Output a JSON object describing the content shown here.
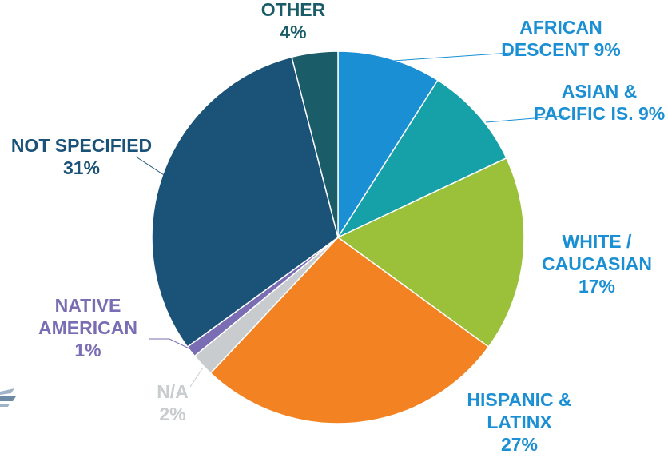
{
  "chart_data": {
    "type": "pie",
    "title": "",
    "slices": [
      {
        "name": "AFRICAN DESCENT",
        "line1": "AFRICAN",
        "line2": "DESCENT 9%",
        "line3": "",
        "value": 9,
        "color": "#1a8fd3",
        "label_color": "#1a8fd3"
      },
      {
        "name": "ASIAN & PACIFIC IS.",
        "line1": "ASIAN &",
        "line2": "PACIFIC IS. 9%",
        "line3": "",
        "value": 9,
        "color": "#16a0a8",
        "label_color": "#1a8fd3"
      },
      {
        "name": "WHITE / CAUCASIAN",
        "line1": "WHITE /",
        "line2": "CAUCASIAN",
        "line3": "17%",
        "value": 17,
        "color": "#9bc13a",
        "label_color": "#1a8fd3"
      },
      {
        "name": "HISPANIC & LATINX",
        "line1": "HISPANIC &",
        "line2": "LATINX",
        "line3": "27%",
        "value": 27,
        "color": "#f28222",
        "label_color": "#1a8fd3"
      },
      {
        "name": "N/A",
        "line1": "N/A",
        "line2": "2%",
        "line3": "",
        "value": 2,
        "color": "#c9cccf",
        "label_color": "#c9cccf"
      },
      {
        "name": "NATIVE AMERICAN",
        "line1": "NATIVE",
        "line2": "AMERICAN",
        "line3": "1%",
        "value": 1,
        "color": "#7a6db3",
        "label_color": "#7a6db3"
      },
      {
        "name": "NOT SPECIFIED",
        "line1": "NOT SPECIFIED",
        "line2": "31%",
        "line3": "",
        "value": 31,
        "color": "#1a5278",
        "label_color": "#1a5278"
      },
      {
        "name": "OTHER",
        "line1": "OTHER",
        "line2": "4%",
        "line3": "",
        "value": 4,
        "color": "#1a5c68",
        "label_color": "#1a5c68"
      }
    ]
  }
}
